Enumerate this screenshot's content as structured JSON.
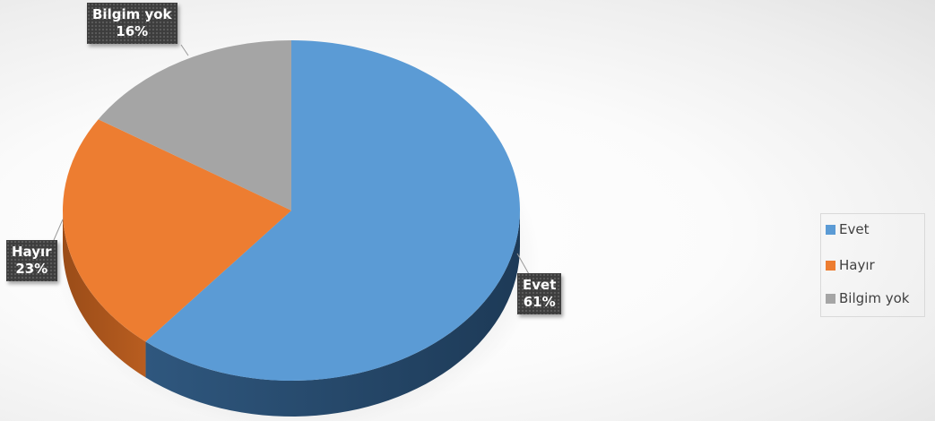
{
  "chart_data": {
    "type": "pie",
    "title": "",
    "categories": [
      "Evet",
      "Hayır",
      "Bilgim yok"
    ],
    "values": [
      61,
      23,
      16
    ],
    "value_format": "percent",
    "colors": [
      "#5b9bd5",
      "#ed7d31",
      "#a5a5a5"
    ],
    "legend_position": "right",
    "labels": [
      {
        "name": "Evet",
        "value_text": "61%"
      },
      {
        "name": "Hayır",
        "value_text": "23%"
      },
      {
        "name": "Bilgim yok",
        "value_text": "16%"
      }
    ]
  },
  "legend": {
    "items": [
      {
        "label": "Evet",
        "color": "#5b9bd5"
      },
      {
        "label": "Hayır",
        "color": "#ed7d31"
      },
      {
        "label": "Bilgim yok",
        "color": "#a5a5a5"
      }
    ]
  }
}
